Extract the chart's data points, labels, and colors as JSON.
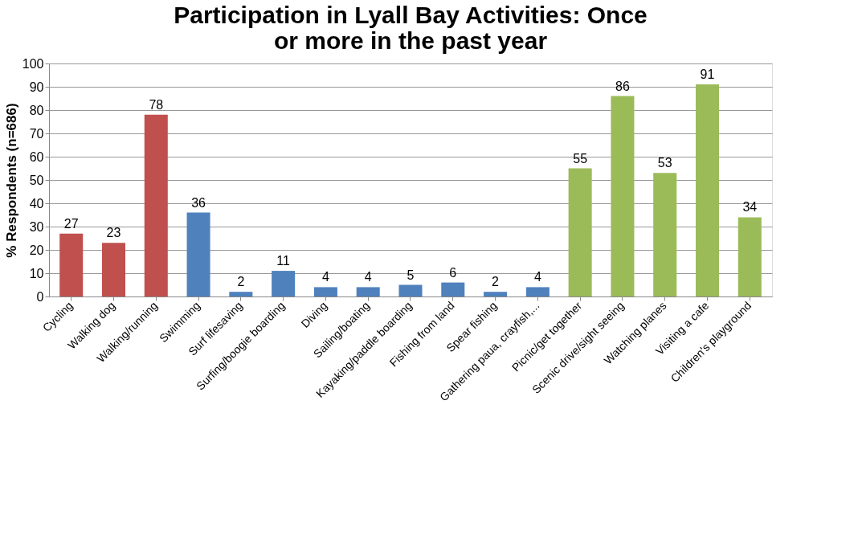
{
  "chart_data": {
    "type": "bar",
    "title": "Participation in Lyall Bay Activities: Once or more in the past year",
    "ylabel": "% Respondents (n=686)",
    "categories": [
      "Cycling",
      "Walking dog",
      "Walking/running",
      "Swimming",
      "Surf lifesaving",
      "Surfing/boogie boarding",
      "Diving",
      "Sailing/boating",
      "Kayaking/paddle boarding",
      "Fishing from land",
      "Spear fishing",
      "Gathering paua, crayfish,...",
      "Picnic/get together",
      "Scenic drive/sight seeing",
      "Watching planes",
      "Visiting a cafe",
      "Children's playground"
    ],
    "values": [
      27,
      23,
      78,
      36,
      2,
      11,
      4,
      4,
      5,
      6,
      2,
      4,
      55,
      86,
      53,
      91,
      34
    ],
    "colors": [
      "#c0504d",
      "#c0504d",
      "#c0504d",
      "#4f81bd",
      "#4f81bd",
      "#4f81bd",
      "#4f81bd",
      "#4f81bd",
      "#4f81bd",
      "#4f81bd",
      "#4f81bd",
      "#4f81bd",
      "#9bbb59",
      "#9bbb59",
      "#9bbb59",
      "#9bbb59",
      "#9bbb59"
    ],
    "ylim": [
      0,
      100
    ],
    "yticks": [
      0,
      10,
      20,
      30,
      40,
      50,
      60,
      70,
      80,
      90,
      100
    ],
    "grid": "y",
    "data_labels": true
  }
}
